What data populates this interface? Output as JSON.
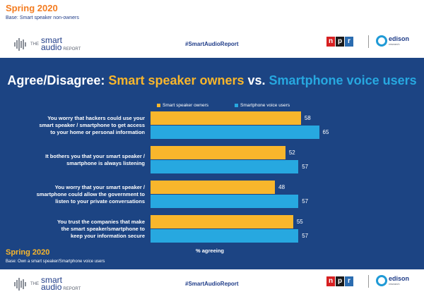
{
  "header": {
    "season": "Spring 2020",
    "base": "Base: Smart speaker non-owners",
    "hashtag": "#SmartAudioReport",
    "logo_the": "THE",
    "logo_smart": "smart",
    "logo_audio": "audio",
    "logo_report": "REPORT",
    "npr_n": "n",
    "npr_p": "p",
    "npr_r": "r",
    "edison": "edison",
    "edison_sub": "research"
  },
  "panel": {
    "title_part1": "Agree/Disagree: ",
    "title_part2": "Smart speaker owners",
    "title_part3": " vs. ",
    "title_part4": "Smartphone voice users",
    "season": "Spring 2020",
    "base": "Base: Own a smart speaker/Smartphone voice users"
  },
  "footer": {
    "hashtag": "#SmartAudioReport",
    "logo_the": "THE",
    "logo_smart": "smart",
    "logo_audio": "audio",
    "logo_report": "REPORT",
    "npr_n": "n",
    "npr_p": "p",
    "npr_r": "r",
    "edison": "edison",
    "edison_sub": "research"
  },
  "colors": {
    "owners": "#f8b62c",
    "voice": "#27a8e0"
  },
  "chart_data": {
    "type": "bar",
    "orientation": "horizontal",
    "xlabel": "% agreeing",
    "xlim": [
      0,
      100
    ],
    "legend_placement": "top",
    "categories": [
      "You worry that hackers could use your smart speaker / smartphone to get access to your home or personal information",
      "It bothers you that your smart speaker / smartphone is always listening",
      "You worry that your smart speaker / smartphone could allow the government to listen to your private conversations",
      "You trust the companies that make the smart speaker/smartphone to keep your information secure"
    ],
    "category_lines": [
      [
        "You worry that hackers could use your",
        "smart speaker / smartphone to get access",
        "to your home or personal information"
      ],
      [
        "It bothers you that your smart speaker /",
        "smartphone is always listening"
      ],
      [
        "You worry that your smart speaker /",
        "smartphone could allow the government to",
        "listen to your private conversations"
      ],
      [
        "You trust the companies that make",
        "the smart speaker/smartphone to",
        "keep your information secure"
      ]
    ],
    "series": [
      {
        "name": "Smart speaker owners",
        "values": [
          58,
          52,
          48,
          55
        ]
      },
      {
        "name": "Smartphone voice users",
        "values": [
          65,
          57,
          57,
          57
        ]
      }
    ]
  }
}
